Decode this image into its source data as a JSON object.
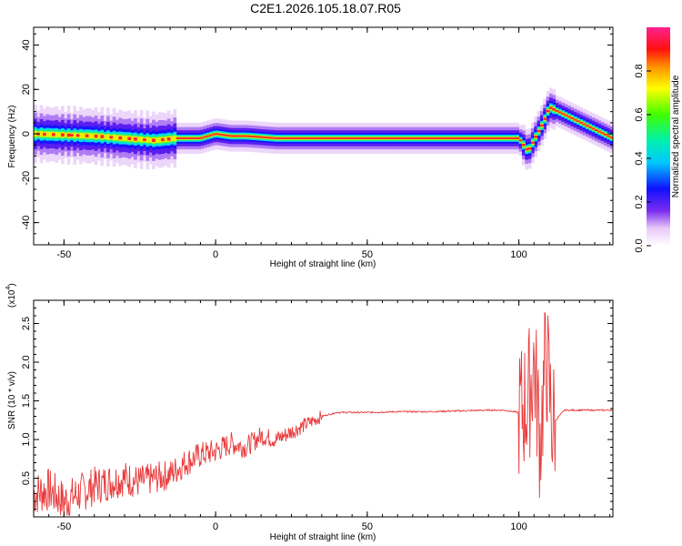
{
  "title": "C2E1.2026.105.18.07.R05",
  "chart_data": [
    {
      "type": "heatmap",
      "xlabel": "Height of straight line (km)",
      "ylabel": "Frequency (Hz)",
      "xlim": [
        -60,
        131
      ],
      "ylim": [
        -50,
        48
      ],
      "xticks": [
        -50,
        0,
        50,
        100
      ],
      "yticks": [
        -40,
        -20,
        0,
        20,
        40
      ],
      "colorbar": {
        "label": "Normalized spectral amplitude",
        "ticks": [
          "0.0",
          "0.2",
          "0.4",
          "0.6",
          "0.8"
        ],
        "range": [
          0,
          1
        ]
      },
      "ridge": {
        "x": [
          -60,
          -50,
          -40,
          -30,
          -20,
          -13,
          -5,
          0,
          5,
          10,
          20,
          40,
          60,
          80,
          100,
          103,
          106,
          108,
          110,
          131
        ],
        "y": [
          0,
          -0.5,
          -1,
          -2,
          -3,
          -2,
          -2,
          0,
          -1,
          -1,
          -2,
          -2,
          -2,
          -2,
          -2,
          -8,
          0,
          5,
          12,
          -2
        ]
      }
    },
    {
      "type": "line",
      "xlabel": "Height of straight line (km)",
      "ylabel": "SNR (10 * v/v)",
      "yscale_label": "(x10",
      "yscale_exp": "4",
      "xlim": [
        -60,
        131
      ],
      "ylim": [
        0,
        2.8
      ],
      "xticks": [
        -50,
        0,
        50,
        100
      ],
      "yticks": [
        "0.5",
        "1.0",
        "1.5",
        "2.0",
        "2.5"
      ],
      "series": [
        {
          "color": "#e8393a",
          "x": [
            -60,
            -55,
            -50,
            -45,
            -40,
            -35,
            -30,
            -25,
            -20,
            -15,
            -10,
            -5,
            0,
            5,
            10,
            15,
            20,
            25,
            30,
            35,
            40,
            50,
            60,
            70,
            80,
            90,
            95,
            100,
            103,
            105,
            107,
            109,
            111,
            115,
            120,
            131
          ],
          "y": [
            0.3,
            0.35,
            0.2,
            0.3,
            0.4,
            0.45,
            0.5,
            0.45,
            0.5,
            0.55,
            0.7,
            0.8,
            0.85,
            0.95,
            0.9,
            1.05,
            1.0,
            1.1,
            1.2,
            1.3,
            1.35,
            1.35,
            1.36,
            1.36,
            1.37,
            1.38,
            1.38,
            1.35,
            1.5,
            2.0,
            1.0,
            2.1,
            1.2,
            1.38,
            1.38,
            1.38
          ]
        }
      ]
    }
  ]
}
